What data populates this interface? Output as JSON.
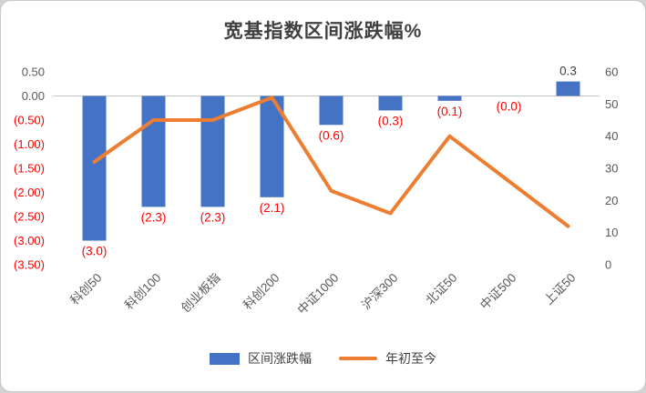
{
  "chart_data": {
    "type": "bar+line combo",
    "title": "宽基指数区间涨跌幅%",
    "categories": [
      "科创50",
      "科创100",
      "创业板指",
      "科创200",
      "中证1000",
      "沪深300",
      "北证50",
      "中证500",
      "上证50"
    ],
    "series": [
      {
        "name": "区间涨跌幅",
        "type": "bar",
        "axis": "left",
        "color": "#4472C4",
        "values": [
          -3.0,
          -2.3,
          -2.3,
          -2.1,
          -0.6,
          -0.3,
          -0.1,
          0.0,
          0.3
        ],
        "labels": [
          "(3.0)",
          "(2.3)",
          "(2.3)",
          "(2.1)",
          "(0.6)",
          "(0.3)",
          "(0.1)",
          "(0.0)",
          "0.3"
        ]
      },
      {
        "name": "年初至今",
        "type": "line",
        "axis": "right",
        "color": "#ED7D31",
        "values": [
          32,
          45,
          45,
          52,
          23,
          16,
          40,
          26,
          12
        ]
      }
    ],
    "left_axis": {
      "ticks": [
        "0.50",
        "0.00",
        "(0.50)",
        "(1.00)",
        "(1.50)",
        "(2.00)",
        "(2.50)",
        "(3.00)",
        "(3.50)"
      ],
      "max": 0.5,
      "min": -3.5,
      "tick_step": 0.5,
      "positive_color": "#595959",
      "negative_color": "#FF0000"
    },
    "right_axis": {
      "ticks": [
        "60",
        "50",
        "40",
        "30",
        "20",
        "10",
        "0"
      ],
      "max": 60,
      "min": 0,
      "tick_step": 10,
      "color": "#595959"
    },
    "data_label_colors": {
      "negative": "#FF0000",
      "positive": "#404040"
    },
    "grid": "zero-line only",
    "legend_position": "bottom",
    "legend": [
      {
        "label": "区间涨跌幅",
        "swatch": "bar",
        "color": "#4472C4"
      },
      {
        "label": "年初至今",
        "swatch": "line",
        "color": "#ED7D31"
      }
    ]
  }
}
